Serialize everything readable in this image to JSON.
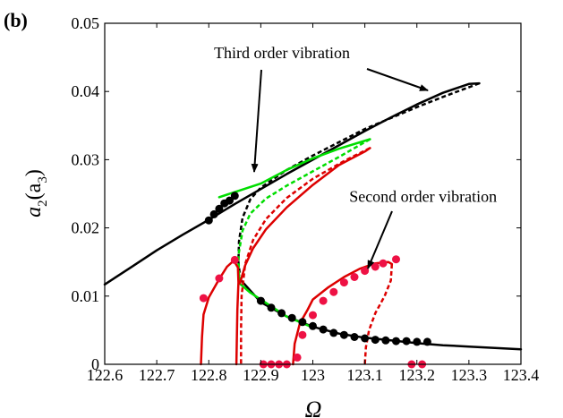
{
  "chart_data": {
    "type": "line",
    "panel_label": "(b)",
    "xlabel": "Ω",
    "ylabel_main": "a",
    "ylabel_sub1": "2",
    "ylabel_mid": "(a",
    "ylabel_sub2": "3",
    "ylabel_end": ")",
    "xlim": [
      122.6,
      123.4
    ],
    "ylim": [
      0,
      0.05
    ],
    "xticks": [
      122.6,
      122.7,
      122.8,
      122.9,
      123.0,
      123.1,
      123.2,
      123.3,
      123.4
    ],
    "xtick_labels": [
      "122.6",
      "122.7",
      "122.8",
      "122.9",
      "123",
      "123.1",
      "123.2",
      "123.3",
      "123.4"
    ],
    "yticks": [
      0,
      0.01,
      0.02,
      0.03,
      0.04,
      0.05
    ],
    "ytick_labels": [
      "0",
      "0.01",
      "0.02",
      "0.03",
      "0.04",
      "0.05"
    ],
    "annotations": [
      {
        "text": "Third order vibration",
        "x": 122.81,
        "y": 0.0449
      },
      {
        "text": "Second order vibration",
        "x": 123.07,
        "y": 0.0238
      }
    ],
    "series": [
      {
        "color": "#000000",
        "style": "solid",
        "points": [
          [
            122.6,
            0.0117
          ],
          [
            122.65,
            0.0142
          ],
          [
            122.7,
            0.0167
          ],
          [
            122.75,
            0.019
          ],
          [
            122.8,
            0.0212
          ],
          [
            122.85,
            0.0235
          ],
          [
            122.9,
            0.0257
          ],
          [
            122.95,
            0.0279
          ],
          [
            123.0,
            0.03
          ],
          [
            123.05,
            0.0321
          ],
          [
            123.1,
            0.0342
          ],
          [
            123.15,
            0.0362
          ],
          [
            123.2,
            0.0381
          ],
          [
            123.25,
            0.0398
          ],
          [
            123.3,
            0.0411
          ],
          [
            123.32,
            0.0412
          ]
        ]
      },
      {
        "color": "#000000",
        "style": "dashed",
        "points": [
          [
            123.32,
            0.0412
          ],
          [
            123.25,
            0.0392
          ],
          [
            123.2,
            0.0377
          ],
          [
            123.1,
            0.0345
          ],
          [
            123.0,
            0.0306
          ],
          [
            122.95,
            0.0285
          ],
          [
            122.9,
            0.0259
          ],
          [
            122.88,
            0.0242
          ],
          [
            122.865,
            0.0215
          ],
          [
            122.858,
            0.018
          ],
          [
            122.857,
            0.015
          ],
          [
            122.86,
            0.013
          ]
        ]
      },
      {
        "color": "#000000",
        "style": "solid",
        "points": [
          [
            122.86,
            0.0125
          ],
          [
            122.9,
            0.0091
          ],
          [
            122.95,
            0.007
          ],
          [
            123.0,
            0.0055
          ],
          [
            123.05,
            0.0045
          ],
          [
            123.1,
            0.0039
          ],
          [
            123.15,
            0.0035
          ],
          [
            123.2,
            0.0031
          ],
          [
            123.25,
            0.0028
          ],
          [
            123.3,
            0.0026
          ],
          [
            123.35,
            0.0024
          ],
          [
            123.4,
            0.0022
          ]
        ]
      },
      {
        "color": "#00dd00",
        "style": "solid",
        "points": [
          [
            122.82,
            0.0245
          ],
          [
            122.9,
            0.0265
          ],
          [
            122.95,
            0.0285
          ],
          [
            123.0,
            0.0302
          ],
          [
            123.05,
            0.0316
          ],
          [
            123.11,
            0.033
          ]
        ]
      },
      {
        "color": "#00dd00",
        "style": "dashed",
        "points": [
          [
            123.11,
            0.033
          ],
          [
            123.05,
            0.0304
          ],
          [
            123.0,
            0.0283
          ],
          [
            122.95,
            0.0262
          ],
          [
            122.91,
            0.0243
          ],
          [
            122.88,
            0.0221
          ],
          [
            122.865,
            0.0196
          ],
          [
            122.857,
            0.016
          ],
          [
            122.858,
            0.013
          ]
        ]
      },
      {
        "color": "#00dd00",
        "style": "solid",
        "points": [
          [
            122.858,
            0.013
          ],
          [
            122.86,
            0.0118
          ],
          [
            122.88,
            0.0105
          ],
          [
            122.91,
            0.009
          ],
          [
            122.95,
            0.007
          ],
          [
            123.0,
            0.0054
          ]
        ]
      },
      {
        "color": "#dd0000",
        "style": "solid",
        "points": [
          [
            122.86,
            0.0119
          ],
          [
            122.87,
            0.0145
          ],
          [
            122.885,
            0.017
          ],
          [
            122.91,
            0.0198
          ],
          [
            122.95,
            0.023
          ],
          [
            123.0,
            0.0263
          ],
          [
            123.05,
            0.0292
          ],
          [
            123.1,
            0.0312
          ],
          [
            123.11,
            0.0317
          ]
        ]
      },
      {
        "color": "#dd0000",
        "style": "dashed",
        "points": [
          [
            123.11,
            0.0317
          ],
          [
            123.06,
            0.0298
          ],
          [
            123.0,
            0.0272
          ],
          [
            122.95,
            0.0244
          ],
          [
            122.91,
            0.0213
          ],
          [
            122.885,
            0.0182
          ],
          [
            122.87,
            0.0147
          ],
          [
            122.863,
            0.01
          ],
          [
            122.862,
            0.005
          ],
          [
            122.862,
            0.0
          ]
        ]
      },
      {
        "color": "#dd0000",
        "style": "solid",
        "points": [
          [
            122.785,
            0.0
          ],
          [
            122.787,
            0.004
          ],
          [
            122.79,
            0.0073
          ],
          [
            122.8,
            0.0098
          ],
          [
            122.82,
            0.0125
          ],
          [
            122.835,
            0.0143
          ],
          [
            122.848,
            0.0152
          ],
          [
            122.856,
            0.0142
          ],
          [
            122.857,
            0.012
          ],
          [
            122.855,
            0.008
          ],
          [
            122.853,
            0.0
          ]
        ]
      },
      {
        "color": "#dd0000",
        "style": "solid",
        "points": [
          [
            122.962,
            0.0
          ],
          [
            122.965,
            0.003
          ],
          [
            122.975,
            0.006
          ],
          [
            122.99,
            0.008
          ],
          [
            123.0,
            0.0095
          ],
          [
            123.03,
            0.0113
          ],
          [
            123.06,
            0.0128
          ],
          [
            123.09,
            0.014
          ],
          [
            123.12,
            0.0148
          ],
          [
            123.145,
            0.015
          ],
          [
            123.152,
            0.0147
          ]
        ]
      },
      {
        "color": "#dd0000",
        "style": "dashed",
        "points": [
          [
            123.152,
            0.0147
          ],
          [
            123.15,
            0.0123
          ],
          [
            123.138,
            0.01
          ],
          [
            123.12,
            0.0075
          ],
          [
            123.108,
            0.005
          ],
          [
            123.102,
            0.0025
          ],
          [
            123.1,
            0.0
          ]
        ]
      }
    ],
    "markers": [
      {
        "color": "#000000",
        "points": [
          [
            122.8,
            0.0211
          ],
          [
            122.81,
            0.022
          ],
          [
            122.82,
            0.0228
          ],
          [
            122.83,
            0.0236
          ],
          [
            122.84,
            0.024
          ],
          [
            122.85,
            0.0247
          ],
          [
            122.9,
            0.0093
          ],
          [
            122.92,
            0.0083
          ],
          [
            122.94,
            0.0075
          ],
          [
            122.96,
            0.0068
          ],
          [
            122.98,
            0.0062
          ],
          [
            123.0,
            0.0056
          ],
          [
            123.02,
            0.0051
          ],
          [
            123.04,
            0.0046
          ],
          [
            123.06,
            0.0043
          ],
          [
            123.08,
            0.004
          ],
          [
            123.1,
            0.0038
          ],
          [
            123.12,
            0.0036
          ],
          [
            123.14,
            0.0035
          ],
          [
            123.16,
            0.0034
          ],
          [
            123.18,
            0.0034
          ],
          [
            123.2,
            0.0033
          ],
          [
            123.22,
            0.0033
          ]
        ]
      },
      {
        "color": "#ee1144",
        "points": [
          [
            122.79,
            0.0097
          ],
          [
            122.82,
            0.0126
          ],
          [
            122.85,
            0.0153
          ],
          [
            122.905,
            0.0
          ],
          [
            122.92,
            0.0
          ],
          [
            122.935,
            0.0
          ],
          [
            122.95,
            0.0
          ],
          [
            122.97,
            0.001
          ],
          [
            122.98,
            0.0043
          ],
          [
            123.0,
            0.0072
          ],
          [
            123.02,
            0.0093
          ],
          [
            123.04,
            0.0106
          ],
          [
            123.06,
            0.012
          ],
          [
            123.08,
            0.0128
          ],
          [
            123.1,
            0.0137
          ],
          [
            123.12,
            0.0143
          ],
          [
            123.135,
            0.0148
          ],
          [
            123.16,
            0.0154
          ],
          [
            123.19,
            0.0
          ],
          [
            123.21,
            0.0
          ]
        ]
      }
    ]
  }
}
